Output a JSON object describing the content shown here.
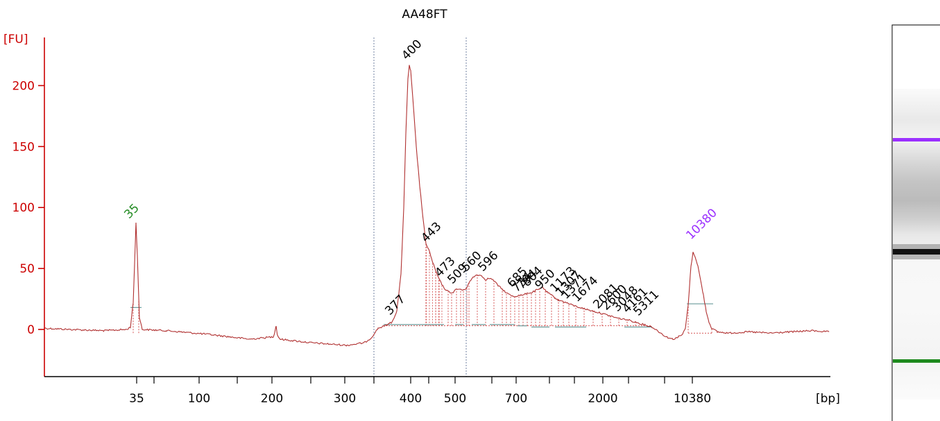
{
  "chart_data": {
    "type": "line",
    "title": "AA48FT",
    "ylabel": "[FU]",
    "xlabel": "[bp]",
    "ylim": [
      -38,
      237
    ],
    "yticks": [
      0,
      50,
      100,
      150,
      200
    ],
    "xticks": [
      "35",
      "100",
      "200",
      "300",
      "400",
      "500",
      "700",
      "2000",
      "10380"
    ],
    "grid": false,
    "colors": {
      "axis": "#cc0000",
      "trace": "#b03030",
      "fill": "#d04040",
      "marker_green": "#228b22",
      "marker_purple": "#9b30ff",
      "baseline": "#6a9a9a",
      "bracket": "#7080a0"
    },
    "peaks": [
      {
        "label": "35",
        "color": "green"
      },
      {
        "label": "377"
      },
      {
        "label": "400"
      },
      {
        "label": "443"
      },
      {
        "label": "473"
      },
      {
        "label": "509"
      },
      {
        "label": "560"
      },
      {
        "label": "596"
      },
      {
        "label": "685"
      },
      {
        "label": "734"
      },
      {
        "label": "794"
      },
      {
        "label": "804"
      },
      {
        "label": "950"
      },
      {
        "label": "1173"
      },
      {
        "label": "1307"
      },
      {
        "label": "1371"
      },
      {
        "label": "1674"
      },
      {
        "label": "2081"
      },
      {
        "label": "2600"
      },
      {
        "label": "3048"
      },
      {
        "label": "4161"
      },
      {
        "label": "5311"
      },
      {
        "label": "10380",
        "color": "purple"
      }
    ]
  },
  "gel_lane": {
    "bands": [
      {
        "name": "upper-marker-band",
        "color": "#9b30ff"
      },
      {
        "name": "main-sample-band",
        "color": "#111111"
      },
      {
        "name": "lower-marker-band",
        "color": "#1e8a1e"
      }
    ]
  }
}
